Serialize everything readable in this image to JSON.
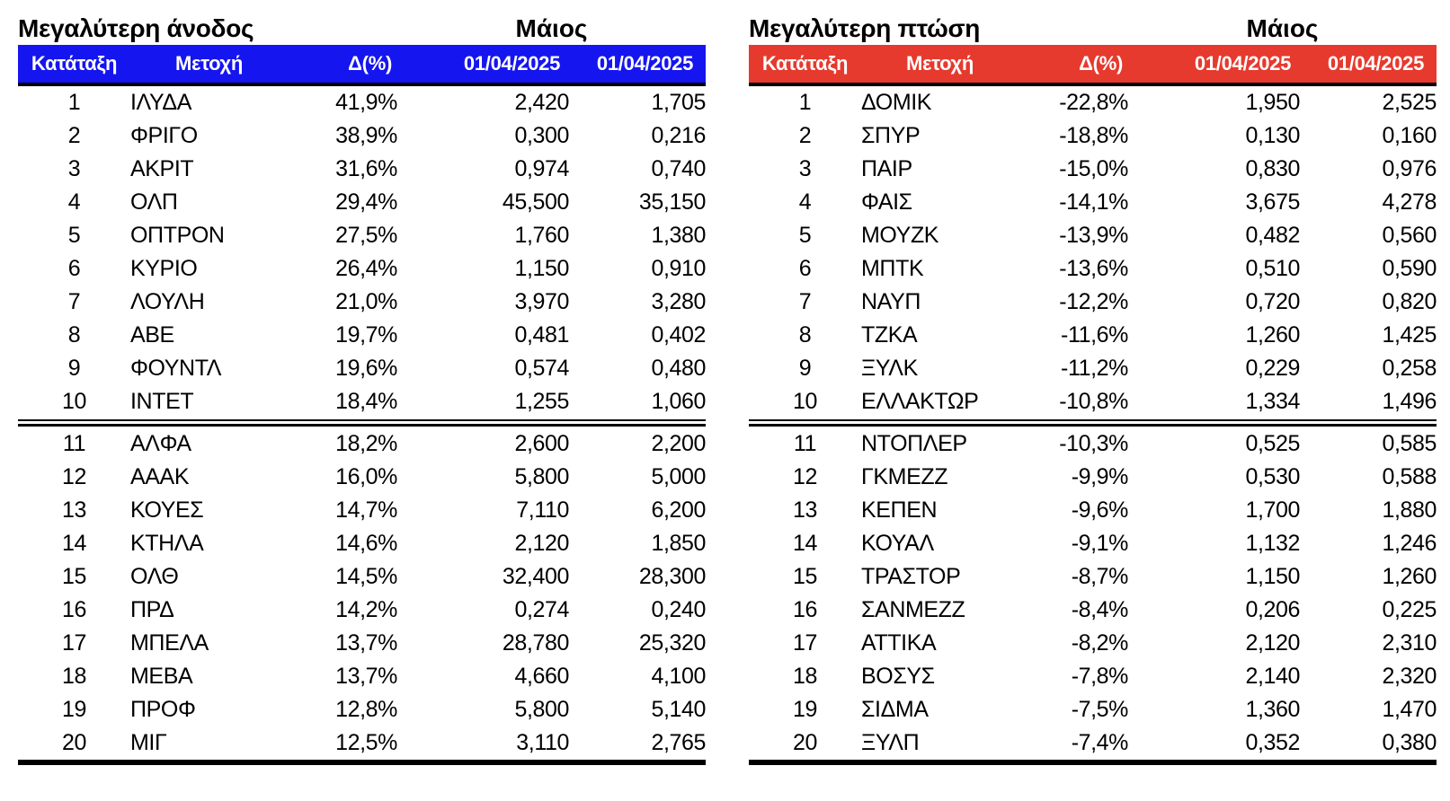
{
  "report": {
    "language": "el",
    "month_label": "Μάιος",
    "date_columns": [
      "01/04/2025",
      "01/04/2025"
    ]
  },
  "chart_data": [
    {
      "type": "table",
      "title": "Μεγαλύτερη άνοδος",
      "period_label": "Μάιος",
      "accent_color": "#1515F0",
      "columns": [
        "Κατάταξη",
        "Μετοχή",
        "Δ(%)",
        "01/04/2025",
        "01/04/2025"
      ],
      "rows": [
        [
          "1",
          "ΙΛΥΔΑ",
          "41,9%",
          "2,420",
          "1,705"
        ],
        [
          "2",
          "ΦΡΙΓΟ",
          "38,9%",
          "0,300",
          "0,216"
        ],
        [
          "3",
          "ΑΚΡΙΤ",
          "31,6%",
          "0,974",
          "0,740"
        ],
        [
          "4",
          "ΟΛΠ",
          "29,4%",
          "45,500",
          "35,150"
        ],
        [
          "5",
          "ΟΠΤΡΟΝ",
          "27,5%",
          "1,760",
          "1,380"
        ],
        [
          "6",
          "ΚΥΡΙΟ",
          "26,4%",
          "1,150",
          "0,910"
        ],
        [
          "7",
          "ΛΟΥΛΗ",
          "21,0%",
          "3,970",
          "3,280"
        ],
        [
          "8",
          "ΑΒΕ",
          "19,7%",
          "0,481",
          "0,402"
        ],
        [
          "9",
          "ΦΟΥΝΤΛ",
          "19,6%",
          "0,574",
          "0,480"
        ],
        [
          "10",
          "ΙΝΤΕΤ",
          "18,4%",
          "1,255",
          "1,060"
        ],
        [
          "11",
          "ΑΛΦΑ",
          "18,2%",
          "2,600",
          "2,200"
        ],
        [
          "12",
          "ΑΑΑΚ",
          "16,0%",
          "5,800",
          "5,000"
        ],
        [
          "13",
          "ΚΟΥΕΣ",
          "14,7%",
          "7,110",
          "6,200"
        ],
        [
          "14",
          "ΚΤΗΛΑ",
          "14,6%",
          "2,120",
          "1,850"
        ],
        [
          "15",
          "ΟΛΘ",
          "14,5%",
          "32,400",
          "28,300"
        ],
        [
          "16",
          "ΠΡΔ",
          "14,2%",
          "0,274",
          "0,240"
        ],
        [
          "17",
          "ΜΠΕΛΑ",
          "13,7%",
          "28,780",
          "25,320"
        ],
        [
          "18",
          "ΜΕΒΑ",
          "13,7%",
          "4,660",
          "4,100"
        ],
        [
          "19",
          "ΠΡΟΦ",
          "12,8%",
          "5,800",
          "5,140"
        ],
        [
          "20",
          "ΜΙΓ",
          "12,5%",
          "3,110",
          "2,765"
        ]
      ]
    },
    {
      "type": "table",
      "title": "Μεγαλύτερη πτώση",
      "period_label": "Μάιος",
      "accent_color": "#E63A2E",
      "columns": [
        "Κατάταξη",
        "Μετοχή",
        "Δ(%)",
        "01/04/2025",
        "01/04/2025"
      ],
      "rows": [
        [
          "1",
          "ΔΟΜΙΚ",
          "-22,8%",
          "1,950",
          "2,525"
        ],
        [
          "2",
          "ΣΠΥΡ",
          "-18,8%",
          "0,130",
          "0,160"
        ],
        [
          "3",
          "ΠΑΙΡ",
          "-15,0%",
          "0,830",
          "0,976"
        ],
        [
          "4",
          "ΦΑΙΣ",
          "-14,1%",
          "3,675",
          "4,278"
        ],
        [
          "5",
          "ΜΟΥΖΚ",
          "-13,9%",
          "0,482",
          "0,560"
        ],
        [
          "6",
          "ΜΠΤΚ",
          "-13,6%",
          "0,510",
          "0,590"
        ],
        [
          "7",
          "ΝΑΥΠ",
          "-12,2%",
          "0,720",
          "0,820"
        ],
        [
          "8",
          "ΤΖΚΑ",
          "-11,6%",
          "1,260",
          "1,425"
        ],
        [
          "9",
          "ΞΥΛΚ",
          "-11,2%",
          "0,229",
          "0,258"
        ],
        [
          "10",
          "ΕΛΛΑΚΤΩΡ",
          "-10,8%",
          "1,334",
          "1,496"
        ],
        [
          "11",
          "ΝΤΟΠΛΕΡ",
          "-10,3%",
          "0,525",
          "0,585"
        ],
        [
          "12",
          "ΓΚΜΕΖΖ",
          "-9,9%",
          "0,530",
          "0,588"
        ],
        [
          "13",
          "ΚΕΠΕΝ",
          "-9,6%",
          "1,700",
          "1,880"
        ],
        [
          "14",
          "ΚΟΥΑΛ",
          "-9,1%",
          "1,132",
          "1,246"
        ],
        [
          "15",
          "ΤΡΑΣΤΟΡ",
          "-8,7%",
          "1,150",
          "1,260"
        ],
        [
          "16",
          "ΣΑΝΜΕΖΖ",
          "-8,4%",
          "0,206",
          "0,225"
        ],
        [
          "17",
          "ΑΤΤΙΚΑ",
          "-8,2%",
          "2,120",
          "2,310"
        ],
        [
          "18",
          "ΒΟΣΥΣ",
          "-7,8%",
          "2,140",
          "2,320"
        ],
        [
          "19",
          "ΣΙΔΜΑ",
          "-7,5%",
          "1,360",
          "1,470"
        ],
        [
          "20",
          "ΞΥΛΠ",
          "-7,4%",
          "0,352",
          "0,380"
        ]
      ]
    }
  ]
}
